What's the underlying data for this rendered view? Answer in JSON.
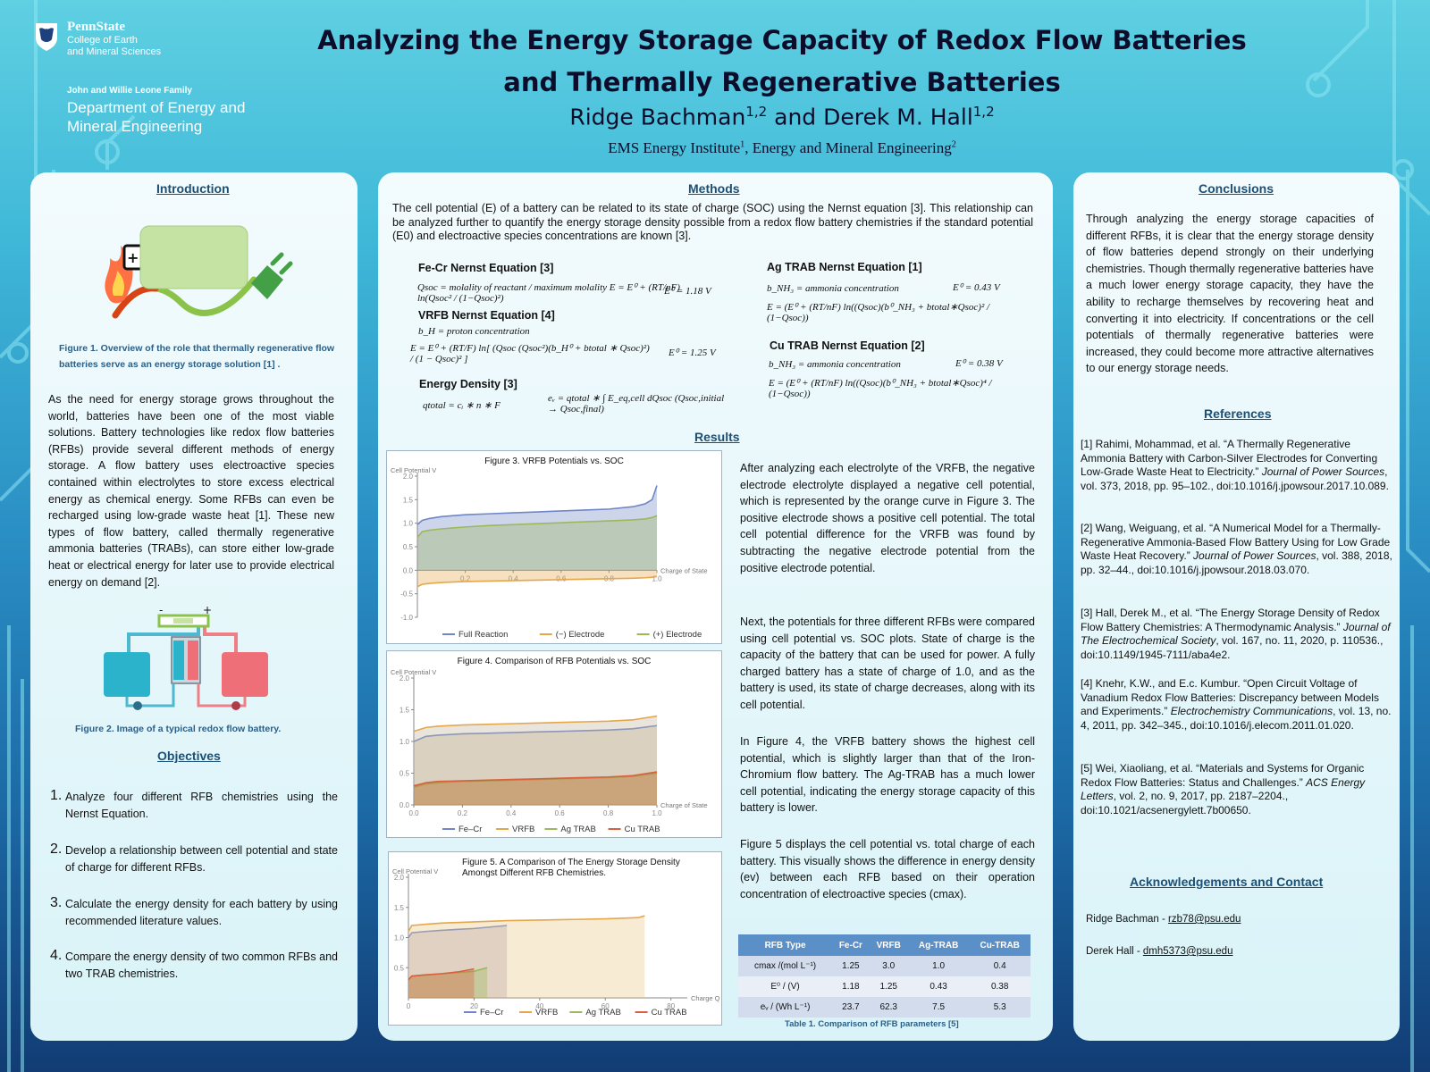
{
  "header": {
    "university": "PennState",
    "college_line1": "College of Earth",
    "college_line2": "and Mineral Sciences",
    "family": "John and Willie Leone Family",
    "department": "Department of Energy and Mineral Engineering",
    "title": "Analyzing the Energy Storage Capacity of Redox Flow Batteries and Thermally Regenerative Batteries",
    "author1": "Ridge Bachman",
    "author1_sup": "1,2",
    "and": " and ",
    "author2": "Derek M. Hall",
    "author2_sup": "1,2",
    "affil1": "EMS Energy Institute",
    "affil1_sup": "1",
    "affil2": ", Energy and Mineral Engineering",
    "affil2_sup": "2"
  },
  "introduction": {
    "heading": "Introduction",
    "fig1_caption": "Figure 1. Overview of the role that thermally regenerative flow batteries serve as an energy storage solution [1] .",
    "body": "As the need for energy storage grows throughout the world, batteries have been one of the most viable solutions. Battery technologies like redox flow batteries (RFBs) provide several different methods of energy storage. A flow battery uses electroactive species contained within electrolytes to store excess electrical energy as chemical energy.  Some RFBs can even be recharged using low-grade waste heat [1]. These new types of flow battery, called thermally regenerative ammonia batteries (TRABs), can store either low-grade heat or electrical energy for later use to provide electrical energy on demand [2].",
    "fig2_minus": "-",
    "fig2_plus": "+",
    "fig2_caption": "Figure 2. Image of a typical redox flow battery."
  },
  "objectives": {
    "heading": "Objectives",
    "items": [
      {
        "num": "1.",
        "text": "Analyze four different RFB chemistries using the Nernst Equation."
      },
      {
        "num": "2.",
        "text": "Develop a relationship between cell potential and state of charge for different RFBs."
      },
      {
        "num": "3.",
        "text": "Calculate the energy density for each battery by using recommended literature values."
      },
      {
        "num": "4.",
        "text": "Compare the energy density of two common RFBs and two TRAB chemistries."
      }
    ]
  },
  "methods": {
    "heading": "Methods",
    "intro": "The cell potential (E) of a battery can be related to its state of charge (SOC) using the Nernst equation [3]. This relationship can be analyzed further to quantify the energy storage density possible from a redox flow battery chemistries if the standard potential (E0) and electroactive species concentrations are known [3].",
    "fecr_title": "Fe-Cr Nernst Equation [3]",
    "fecr_eq": "Qsoc = molality of reactant / maximum molality     E = E⁰ + (RT/nF) ln(Qsoc² / (1−Qsoc)²)",
    "fecr_e0": "E⁰ = 1.18 V",
    "vrfb_title": "VRFB Nernst Equation [4]",
    "vrfb_bh": "b_H = proton concentration",
    "vrfb_eq": "E = E⁰ + (RT/F) ln[ (Qsoc (Qsoc²)(b_H⁰ + btotal ∗ Qsoc)²) / (1 − Qsoc)² ]",
    "vrfb_e0": "E⁰ = 1.25 V",
    "ed_title": "Energy Density [3]",
    "ed_eq1": "qtotal = cᵢ ∗ n ∗ F",
    "ed_eq2": "eᵥ = qtotal ∗ ∫ E_eq,cell dQsoc   (Qsoc,initial → Qsoc,final)",
    "ag_title": "Ag TRAB Nernst Equation [1]",
    "ag_b": "b_NH₃ = ammonia concentration",
    "ag_e0": "E⁰ =  0.43 V",
    "ag_eq": "E = (E⁰ + (RT/nF) ln((Qsoc)(b⁰_NH₃ + btotal∗Qsoc)² / (1−Qsoc))",
    "cu_title": "Cu TRAB Nernst Equation [2]",
    "cu_b": "b_NH₃ = ammonia concentration",
    "cu_e0": "E⁰ =  0.38 V",
    "cu_eq": "E = (E⁰ + (RT/nF) ln((Qsoc)(b⁰_NH₃ + btotal∗Qsoc)⁴ / (1−Qsoc))"
  },
  "results": {
    "heading": "Results",
    "p1": "After analyzing each electrolyte of the VRFB, the negative electrode electrolyte displayed a negative cell potential, which is represented by the orange curve in Figure 3. The positive electrode shows a positive cell potential. The total cell potential difference for the VRFB was found by subtracting the negative electrode potential from the positive electrode potential.",
    "p2": "Next, the potentials for three different RFBs were compared using cell potential vs. SOC plots. State of charge is the capacity of the battery that can be used for power. A fully charged battery has a state of charge of 1.0, and as the battery is used, its state of charge decreases, along with its cell potential.",
    "p3": "In Figure 4, the VRFB battery shows the highest cell potential, which is slightly larger than that of the Iron-Chromium flow battery. The Ag-TRAB has a much lower cell potential, indicating the energy storage capacity of this battery is lower.",
    "p4": "Figure 5 displays the cell potential vs. total charge of each battery. This visually shows the difference in energy density (ev) between each RFB based on their operation concentration of electroactive species (cmax).",
    "table_caption": "Table 1. Comparison of RFB parameters [5]"
  },
  "table": {
    "headers": [
      "RFB Type",
      "Fe-Cr",
      "VRFB",
      "Ag-TRAB",
      "Cu-TRAB"
    ],
    "rows": [
      {
        "label": "cmax /(mol L⁻¹)",
        "values": [
          "1.25",
          "3.0",
          "1.0",
          "0.4"
        ]
      },
      {
        "label": "E⁰ / (V)",
        "values": [
          "1.18",
          "1.25",
          "0.43",
          "0.38"
        ]
      },
      {
        "label": "eᵥ / (Wh L⁻¹)",
        "values": [
          "23.7",
          "62.3",
          "7.5",
          "5.3"
        ]
      }
    ]
  },
  "conclusions": {
    "heading": "Conclusions",
    "body": "Through analyzing the energy storage capacities of different RFBs, it is clear that the energy storage density of flow batteries depend strongly on their underlying chemistries. Though thermally regenerative batteries have a much lower energy storage capacity, they have the ability to recharge themselves by recovering heat and converting it into electricity. If concentrations or the cell potentials of thermally regenerative batteries were increased, they could become more attractive alternatives to our energy storage needs."
  },
  "references": {
    "heading": "References",
    "items": [
      {
        "pre": "[1] Rahimi, Mohammad, et al. “A Thermally Regenerative Ammonia Battery with Carbon-Silver Electrodes for Converting Low-Grade Waste Heat to Electricity.” ",
        "journal": "Journal of Power Sources",
        "post": ", vol. 373, 2018, pp. 95–102., doi:10.1016/j.jpowsour.2017.10.089."
      },
      {
        "pre": "[2] Wang, Weiguang, et al. “A Numerical Model for a Thermally-Regenerative Ammonia-Based Flow Battery Using for Low Grade Waste Heat Recovery.” ",
        "journal": "Journal of Power Sources",
        "post": ", vol. 388, 2018, pp. 32–44., doi:10.1016/j.jpowsour.2018.03.070."
      },
      {
        "pre": " [3] Hall, Derek M., et al. “The Energy Storage Density of Redox Flow Battery Chemistries: A Thermodynamic Analysis.” ",
        "journal": "Journal of The Electrochemical Society",
        "post": ", vol. 167, no. 11, 2020, p. 110536., doi:10.1149/1945-7111/aba4e2."
      },
      {
        "pre": "[4] Knehr, K.W., and E.c. Kumbur. “Open Circuit Voltage of Vanadium Redox Flow Batteries: Discrepancy between Models and Experiments.” ",
        "journal": "Electrochemistry Communications",
        "post": ", vol. 13, no. 4, 2011, pp. 342–345., doi:10.1016/j.elecom.2011.01.020."
      },
      {
        "pre": "[5] Wei, Xiaoliang, et al. “Materials and Systems for Organic Redox Flow Batteries: Status and Challenges.” ",
        "journal": "ACS Energy Letters",
        "post": ", vol. 2, no. 9, 2017, pp. 2187–2204., doi:10.1021/acsenergylett.7b00650."
      }
    ]
  },
  "acknowledgements": {
    "heading": "Acknowledgements and Contact",
    "c1_name": "Ridge Bachman - ",
    "c1_email": "rzb78@psu.edu",
    "c2_name": "Derek Hall - ",
    "c2_email": "dmh5373@psu.edu"
  },
  "colors": {
    "vrfb_blue": "#6f86c7",
    "orange": "#e6a64a",
    "green": "#9bb85a",
    "red": "#d8603e"
  },
  "chart_data": [
    {
      "type": "area",
      "title": "Figure 3. VRFB Potentials vs. SOC",
      "ylabel": "Cell Potential V",
      "xlabel": "Charge of State",
      "xlim": [
        0,
        1.0
      ],
      "ylim": [
        -1.0,
        2.0
      ],
      "xticks": [
        0.2,
        0.4,
        0.6,
        0.8,
        1.0
      ],
      "yticks": [
        -1.0,
        -0.5,
        0.0,
        0.5,
        1.0,
        1.5,
        2.0
      ],
      "x": [
        0.0,
        0.02,
        0.05,
        0.1,
        0.2,
        0.3,
        0.4,
        0.5,
        0.6,
        0.7,
        0.8,
        0.9,
        0.95,
        0.98,
        1.0
      ],
      "series": [
        {
          "name": "Full Reaction",
          "values": [
            0.97,
            1.06,
            1.1,
            1.14,
            1.18,
            1.2,
            1.22,
            1.24,
            1.26,
            1.28,
            1.3,
            1.35,
            1.41,
            1.5,
            1.8
          ]
        },
        {
          "name": "(−) Electrode",
          "values": [
            -0.35,
            -0.3,
            -0.28,
            -0.26,
            -0.24,
            -0.23,
            -0.22,
            -0.21,
            -0.2,
            -0.19,
            -0.18,
            -0.17,
            -0.16,
            -0.15,
            -0.13
          ]
        },
        {
          "name": "(+) Electrode",
          "values": [
            0.7,
            0.82,
            0.85,
            0.88,
            0.92,
            0.95,
            0.97,
            0.99,
            1.01,
            1.03,
            1.05,
            1.07,
            1.09,
            1.12,
            1.16
          ]
        }
      ]
    },
    {
      "type": "area",
      "title": "Figure 4. Comparison of RFB Potentials vs. SOC",
      "ylabel": "Cell Potential V",
      "xlabel": "Charge of State",
      "xlim": [
        0,
        1.0
      ],
      "ylim": [
        0,
        2.0
      ],
      "xticks": [
        0.0,
        0.2,
        0.4,
        0.6,
        0.8,
        1.0
      ],
      "yticks": [
        0.0,
        0.5,
        1.0,
        1.5,
        2.0
      ],
      "x": [
        0.0,
        0.05,
        0.1,
        0.2,
        0.3,
        0.4,
        0.5,
        0.6,
        0.7,
        0.8,
        0.9,
        1.0
      ],
      "series": [
        {
          "name": "Fe–Cr",
          "values": [
            1.0,
            1.08,
            1.1,
            1.12,
            1.13,
            1.14,
            1.15,
            1.16,
            1.17,
            1.18,
            1.2,
            1.25
          ]
        },
        {
          "name": "VRFB",
          "values": [
            1.16,
            1.22,
            1.24,
            1.26,
            1.27,
            1.28,
            1.29,
            1.3,
            1.31,
            1.32,
            1.34,
            1.4
          ]
        },
        {
          "name": "Ag TRAB",
          "values": [
            0.28,
            0.33,
            0.35,
            0.37,
            0.38,
            0.39,
            0.4,
            0.41,
            0.42,
            0.43,
            0.45,
            0.5
          ]
        },
        {
          "name": "Cu TRAB",
          "values": [
            0.3,
            0.35,
            0.37,
            0.38,
            0.39,
            0.4,
            0.41,
            0.42,
            0.43,
            0.44,
            0.46,
            0.52
          ]
        }
      ]
    },
    {
      "type": "area",
      "title": "Figure 5.  A Comparison of The Energy Storage Density Amongst Different RFB Chemistries.",
      "ylabel": "Cell Potential V",
      "xlabel": "Charge Q",
      "xlim": [
        0,
        85
      ],
      "ylim": [
        0,
        2.0
      ],
      "xticks": [
        0,
        20,
        40,
        60,
        80
      ],
      "yticks": [
        0.5,
        1.0,
        1.5,
        2.0
      ],
      "series": [
        {
          "name": "Fe–Cr",
          "x": [
            0,
            1,
            5,
            10,
            20,
            30
          ],
          "values": [
            1.0,
            1.08,
            1.1,
            1.12,
            1.15,
            1.2
          ]
        },
        {
          "name": "VRFB",
          "x": [
            0,
            1,
            5,
            10,
            20,
            30,
            40,
            50,
            60,
            70,
            72
          ],
          "values": [
            1.1,
            1.2,
            1.22,
            1.24,
            1.26,
            1.28,
            1.29,
            1.3,
            1.31,
            1.33,
            1.36
          ]
        },
        {
          "name": "Ag TRAB",
          "x": [
            0,
            1,
            5,
            10,
            15,
            20,
            24
          ],
          "values": [
            0.3,
            0.36,
            0.38,
            0.4,
            0.42,
            0.44,
            0.5
          ]
        },
        {
          "name": "Cu TRAB",
          "x": [
            0,
            1,
            5,
            10,
            15,
            20
          ],
          "values": [
            0.3,
            0.36,
            0.38,
            0.4,
            0.43,
            0.48
          ]
        }
      ]
    }
  ]
}
